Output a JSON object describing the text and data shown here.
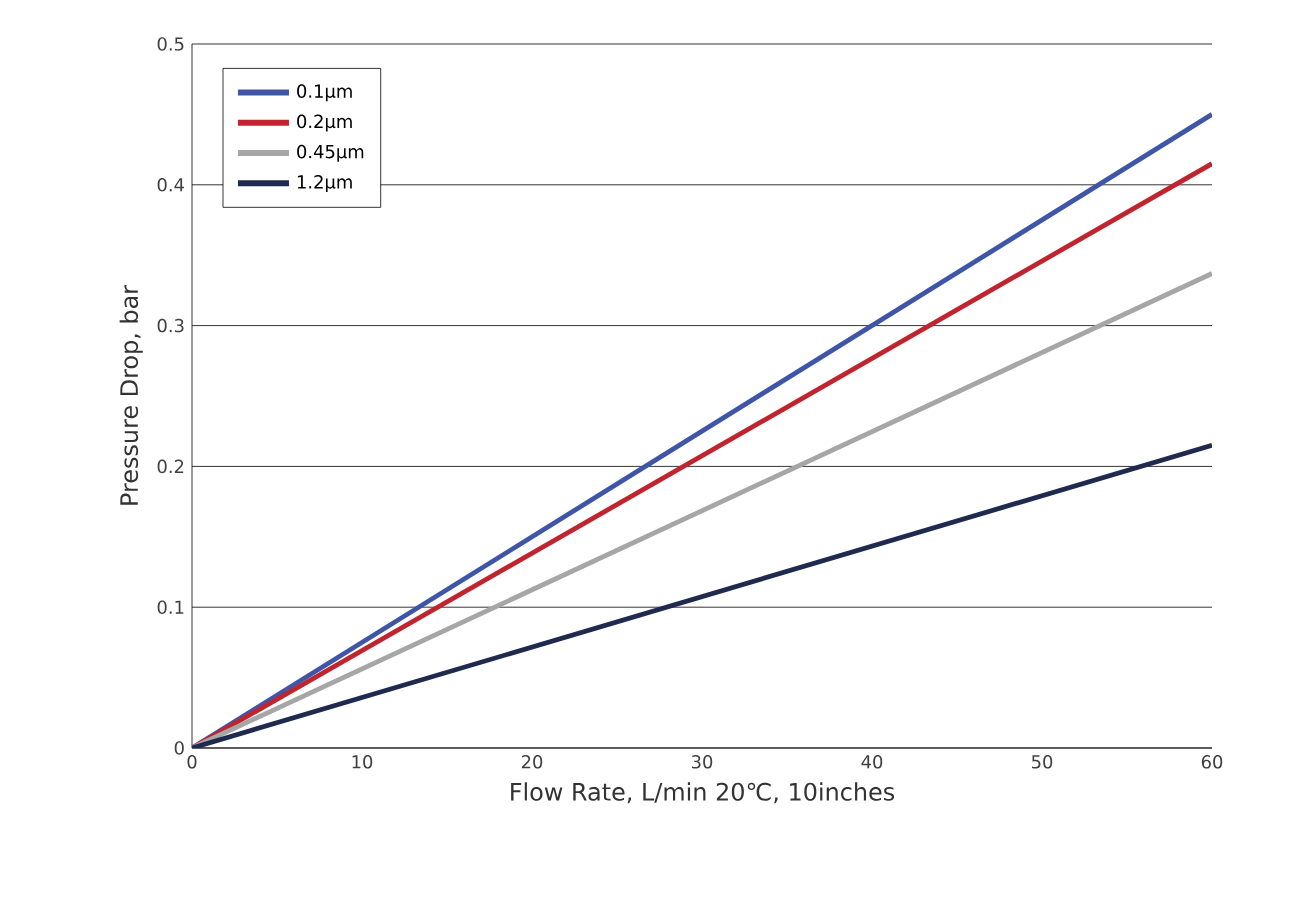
{
  "chart_data": {
    "type": "line",
    "xlabel": "Flow Rate, L/min 20℃, 10inches",
    "ylabel": "Pressure Drop, bar",
    "x": [
      0,
      60
    ],
    "series": [
      {
        "name": "0.1μm",
        "color": "#3f56a8",
        "values": [
          0,
          0.45
        ]
      },
      {
        "name": "0.2μm",
        "color": "#c0252f",
        "values": [
          0,
          0.415
        ]
      },
      {
        "name": "0.45μm",
        "color": "#a6a6a6",
        "values": [
          0,
          0.337
        ]
      },
      {
        "name": "1.2μm",
        "color": "#1f2a4e",
        "values": [
          0,
          0.215
        ]
      }
    ],
    "xlim": [
      0,
      60
    ],
    "ylim": [
      0,
      0.5
    ],
    "xticks": [
      0,
      10,
      20,
      30,
      40,
      50,
      60
    ],
    "yticks": [
      0,
      0.1,
      0.2,
      0.3,
      0.4,
      0.5
    ],
    "grid": "y",
    "legend": "top left",
    "marker": "none",
    "line_style": "solid"
  }
}
